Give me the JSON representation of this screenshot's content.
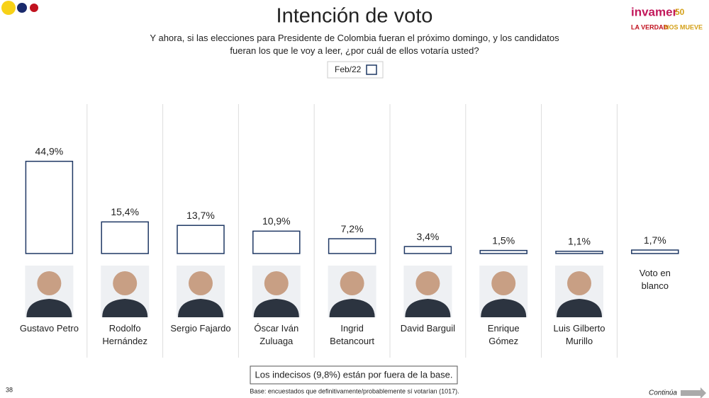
{
  "chart_data": {
    "type": "bar",
    "title": "Intención de voto",
    "subtitle": "Y ahora, si las elecciones para Presidente de Colombia fueran el próximo domingo, y los candidatos fueran los que le voy a leer, ¿por cuál de ellos votaría usted?",
    "categories": [
      "Gustavo Petro",
      "Rodolfo Hernández",
      "Sergio Fajardo",
      "Óscar Iván Zuluaga",
      "Ingrid Betancourt",
      "David Barguil",
      "Enrique Gómez",
      "Luis Gilberto Murillo",
      "Voto en blanco"
    ],
    "series": [
      {
        "name": "Feb/22",
        "color": "#1f3864",
        "values": [
          44.9,
          15.4,
          13.7,
          10.9,
          7.2,
          3.4,
          1.5,
          1.1,
          1.7
        ],
        "value_labels": [
          "44,9%",
          "15,4%",
          "13,7%",
          "10,9%",
          "7,2%",
          "3,4%",
          "1,5%",
          "1,1%",
          "1,7%"
        ]
      }
    ],
    "note": "Los indecisos (9,8%) están por fuera de la base.",
    "base": "Base: encuestados que definitivamente/probablemente sí votarían (1017).",
    "page_number": "38",
    "continue": "Continúa"
  },
  "logo": {
    "name": "invamer",
    "anniversary": "50",
    "tagline_1": "LA VERDAD",
    "tagline_2": "NOS MUEVE"
  }
}
